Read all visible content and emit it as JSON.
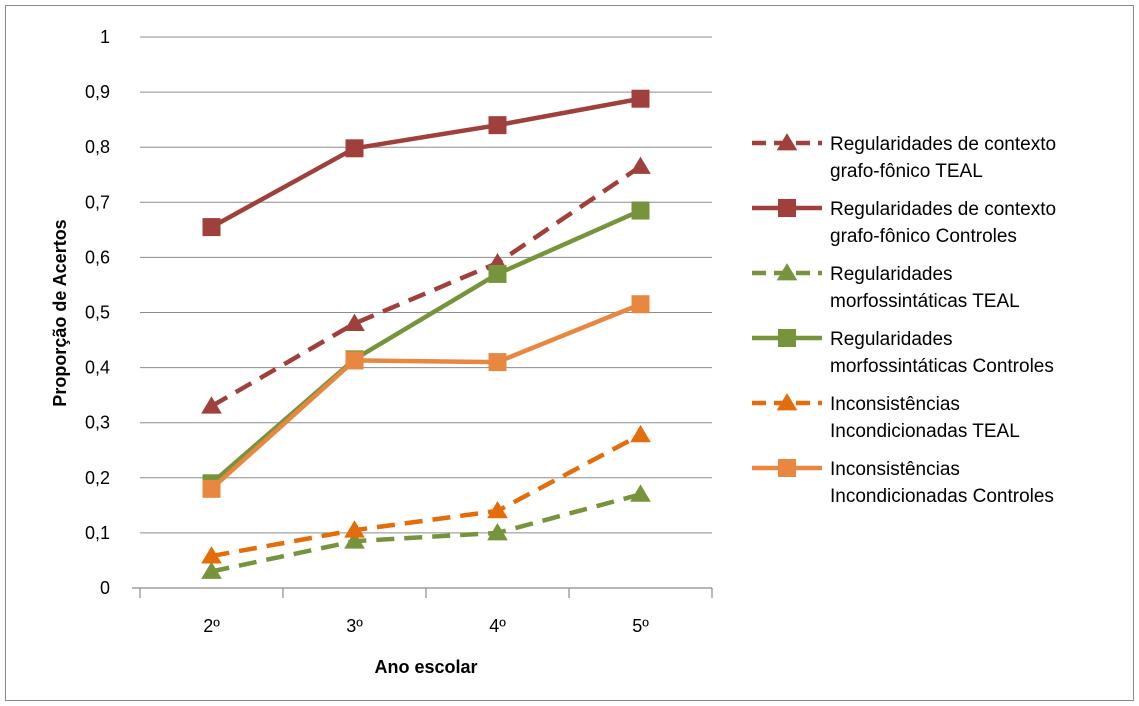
{
  "chart_data": {
    "type": "line",
    "title": "",
    "xlabel": "Ano escolar",
    "ylabel": "Proporção de Acertos",
    "ylim": [
      0,
      1
    ],
    "yticks": [
      "0",
      "0,1",
      "0,2",
      "0,3",
      "0,4",
      "0,5",
      "0,6",
      "0,7",
      "0,8",
      "0,9",
      "1"
    ],
    "categories": [
      "2º",
      "3º",
      "4º",
      "5º"
    ],
    "grid": "horizontal",
    "legend_position": "right",
    "series": [
      {
        "name_lines": [
          "Regularidades de contexto",
          "grafo-fônico TEAL"
        ],
        "values": [
          0.33,
          0.48,
          0.59,
          0.765
        ],
        "color": "#A0403C",
        "dash": true,
        "marker": "triangle"
      },
      {
        "name_lines": [
          "Regularidades de contexto",
          "grafo-fônico Controles"
        ],
        "values": [
          0.655,
          0.798,
          0.84,
          0.888
        ],
        "color": "#A0403C",
        "dash": false,
        "marker": "square"
      },
      {
        "name_lines": [
          "Regularidades",
          "morfossintáticas  TEAL"
        ],
        "values": [
          0.03,
          0.085,
          0.1,
          0.17
        ],
        "color": "#77933C",
        "dash": true,
        "marker": "triangle"
      },
      {
        "name_lines": [
          "Regularidades",
          "morfossintáticas  Controles"
        ],
        "values": [
          0.19,
          0.415,
          0.57,
          0.685
        ],
        "color": "#77933C",
        "dash": false,
        "marker": "square"
      },
      {
        "name_lines": [
          "Inconsistências",
          "Incondicionadas TEAL"
        ],
        "values": [
          0.058,
          0.105,
          0.14,
          0.278
        ],
        "color": "#E46C0A",
        "dash": true,
        "marker": "triangle"
      },
      {
        "name_lines": [
          "Inconsistências",
          "Incondicionadas Controles"
        ],
        "values": [
          0.18,
          0.413,
          0.41,
          0.515
        ],
        "color": "#E8873F",
        "dash": false,
        "marker": "square"
      }
    ]
  }
}
